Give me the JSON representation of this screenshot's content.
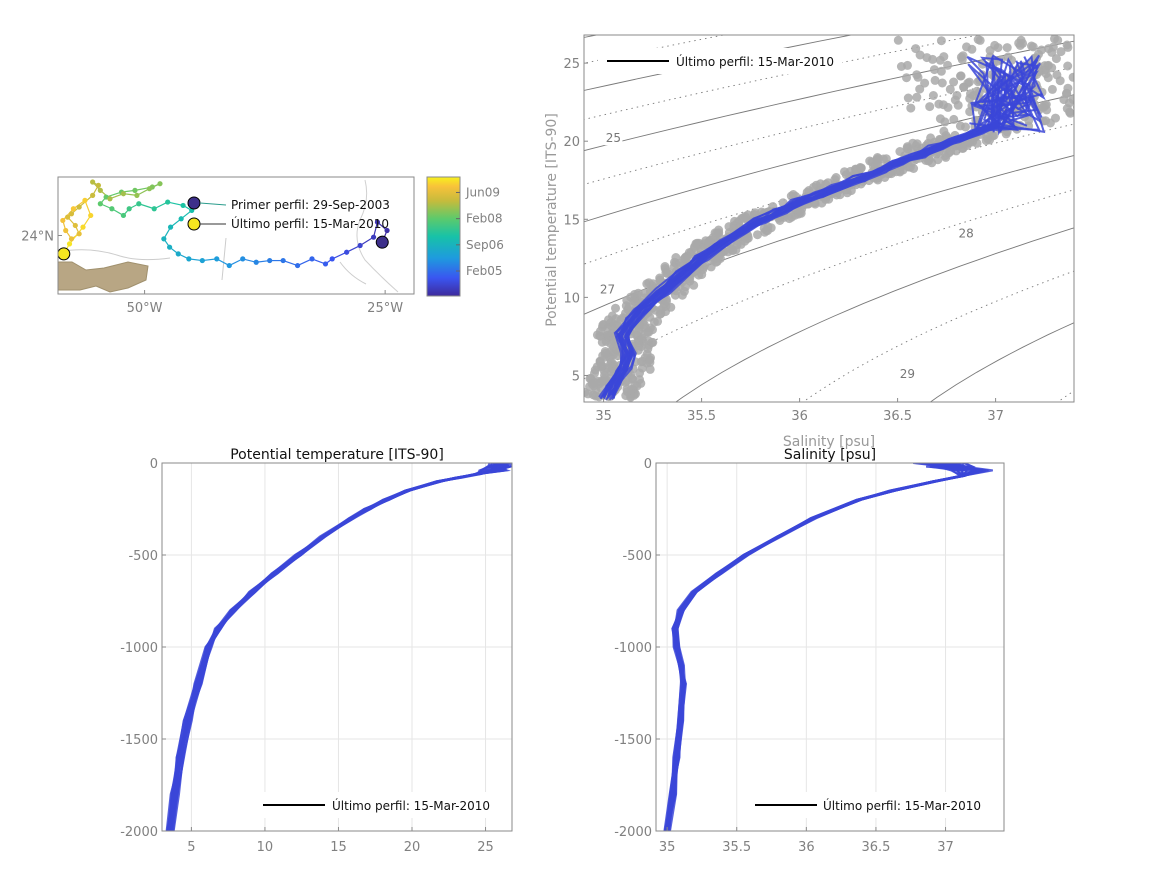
{
  "colors": {
    "profile": "#3b46d8",
    "history": "#a9a9a9",
    "grid": "#e6e6e6",
    "axis": "#8a8a8a",
    "contour": "#7a7a7a",
    "land": "#b8a684",
    "first_marker": "#3d2f8a",
    "last_marker": "#f6e620"
  },
  "chart_data": [
    {
      "id": "map",
      "type": "scatter",
      "title": "",
      "xlabel": "",
      "ylabel": "",
      "xlim": [
        -59,
        -22
      ],
      "ylim": [
        20.5,
        27.5
      ],
      "xticks": [
        -50,
        -25
      ],
      "xtick_labels": [
        "50°W",
        "25°W"
      ],
      "yticks": [
        24
      ],
      "ytick_labels": [
        "24°N"
      ],
      "track": {
        "lon": [
          -25.3,
          -24.8,
          -25.8,
          -26.2,
          -27.6,
          -29.0,
          -30.5,
          -31.2,
          -32.6,
          -34.1,
          -35.6,
          -37.0,
          -38.4,
          -39.8,
          -41.2,
          -42.5,
          -44.0,
          -45.4,
          -46.5,
          -47.4,
          -48.0,
          -47.3,
          -46.2,
          -45.1,
          -46.0,
          -47.6,
          -49.0,
          -50.6,
          -51.6,
          -52.2,
          -53.4,
          -54.6,
          -54.0,
          -52.4,
          -51.0,
          -49.2,
          -48.4,
          -49.5,
          -50.8,
          -52.2,
          -53.6,
          -54.6,
          -55.4,
          -54.8,
          -55.4,
          -56.8,
          -57.6,
          -58.0,
          -57.2,
          -56.8,
          -57.6,
          -58.2,
          -58.5,
          -57.4,
          -56.2,
          -55.6,
          -56.4,
          -57.8,
          -58.4
        ],
        "lat": [
          23.6,
          24.3,
          24.8,
          23.9,
          23.4,
          23.0,
          22.6,
          22.3,
          22.6,
          22.2,
          22.5,
          22.5,
          22.4,
          22.6,
          22.2,
          22.6,
          22.5,
          22.6,
          22.9,
          23.3,
          23.8,
          24.5,
          25.0,
          25.5,
          25.8,
          26.0,
          25.6,
          25.9,
          25.6,
          25.2,
          25.6,
          25.9,
          26.3,
          26.6,
          26.7,
          26.9,
          27.1,
          26.8,
          26.4,
          26.5,
          26.2,
          26.7,
          27.2,
          27.0,
          26.4,
          25.7,
          25.3,
          25.1,
          24.6,
          24.1,
          23.8,
          24.3,
          24.9,
          25.6,
          26.1,
          25.2,
          24.5,
          23.5,
          22.9
        ],
        "t": [
          0.0,
          0.02,
          0.04,
          0.06,
          0.09,
          0.12,
          0.15,
          0.17,
          0.19,
          0.21,
          0.23,
          0.25,
          0.27,
          0.29,
          0.31,
          0.33,
          0.35,
          0.37,
          0.39,
          0.41,
          0.43,
          0.45,
          0.47,
          0.49,
          0.51,
          0.53,
          0.55,
          0.57,
          0.59,
          0.61,
          0.63,
          0.65,
          0.66,
          0.67,
          0.68,
          0.7,
          0.71,
          0.72,
          0.73,
          0.75,
          0.76,
          0.77,
          0.78,
          0.8,
          0.81,
          0.82,
          0.84,
          0.85,
          0.86,
          0.88,
          0.89,
          0.9,
          0.91,
          0.93,
          0.94,
          0.95,
          0.96,
          0.98,
          1.0
        ]
      },
      "first_profile": {
        "lon": -25.3,
        "lat": 23.6,
        "label": "Primer perfil: 29-Sep-2003"
      },
      "last_profile": {
        "lon": -58.4,
        "lat": 22.9,
        "label": "Último perfil: 15-Mar-2010"
      },
      "colorbar": {
        "ticks": [
          "Jun09",
          "Feb08",
          "Sep06",
          "Feb05"
        ],
        "tick_positions": [
          0.87,
          0.65,
          0.43,
          0.21
        ]
      }
    },
    {
      "id": "ts",
      "type": "scatter",
      "xlabel": "Salinity [psu]",
      "ylabel": "Potential temperature [ITS-90]",
      "xlim": [
        34.9,
        37.4
      ],
      "ylim": [
        3.3,
        26.8
      ],
      "xticks": [
        35,
        35.5,
        36,
        36.5,
        37
      ],
      "xtick_labels": [
        "35",
        "35.5",
        "36",
        "36.5",
        "37"
      ],
      "yticks": [
        5,
        10,
        15,
        20,
        25
      ],
      "ytick_labels": [
        "5",
        "10",
        "15",
        "20",
        "25"
      ],
      "sigma_solid": [
        24,
        25,
        26,
        27,
        28,
        29
      ],
      "sigma_dotted": [
        24.5,
        25.5,
        26.5,
        27.5,
        28.5
      ],
      "sigma_labels": [
        {
          "value": "25",
          "s": 35.05,
          "t": 20.0
        },
        {
          "value": "27",
          "s": 35.02,
          "t": 10.3
        },
        {
          "value": "28",
          "s": 36.85,
          "t": 13.9
        },
        {
          "value": "29",
          "s": 36.55,
          "t": 4.9
        }
      ],
      "legend": {
        "label": "Último perfil: 15-Mar-2010",
        "location": "top-left"
      },
      "profile_curve": {
        "s": [
          35.02,
          35.05,
          35.1,
          35.13,
          35.1,
          35.15,
          35.2,
          35.3,
          35.4,
          35.5,
          35.6,
          35.7,
          35.8,
          35.9,
          36.0,
          36.1,
          36.2,
          36.3,
          36.4,
          36.5,
          36.6,
          36.7,
          36.8,
          36.9,
          37.0
        ],
        "t": [
          3.6,
          4.4,
          5.4,
          6.4,
          7.6,
          8.5,
          9.3,
          10.4,
          11.5,
          12.6,
          13.5,
          14.2,
          14.9,
          15.5,
          16.1,
          16.6,
          17.1,
          17.6,
          18.1,
          18.6,
          19.1,
          19.6,
          20.1,
          20.6,
          21.0
        ]
      }
    },
    {
      "id": "temp_profile",
      "type": "line",
      "title": "Potential temperature [ITS-90]",
      "xlabel": "",
      "ylabel": "",
      "xlim": [
        3.0,
        26.8
      ],
      "ylim": [
        -2000,
        0
      ],
      "xticks": [
        5,
        10,
        15,
        20,
        25
      ],
      "xtick_labels": [
        "5",
        "10",
        "15",
        "20",
        "25"
      ],
      "yticks": [
        0,
        -500,
        -1000,
        -1500,
        -2000
      ],
      "ytick_labels": [
        "0",
        "-500",
        "-1000",
        "-1500",
        "-2000"
      ],
      "legend": {
        "label": "Último perfil: 15-Mar-2010",
        "location": "bottom-right"
      },
      "profile": {
        "depth": [
          -2000,
          -1800,
          -1600,
          -1400,
          -1200,
          -1000,
          -900,
          -800,
          -700,
          -600,
          -500,
          -400,
          -300,
          -250,
          -200,
          -150,
          -100,
          -80,
          -60,
          -40,
          -20,
          0
        ],
        "value": [
          3.6,
          3.9,
          4.3,
          4.8,
          5.5,
          6.2,
          6.9,
          7.9,
          9.2,
          10.7,
          12.3,
          14.0,
          15.9,
          17.0,
          18.3,
          19.8,
          21.9,
          23.2,
          24.5,
          25.6,
          26.0,
          26.1
        ]
      }
    },
    {
      "id": "sal_profile",
      "type": "line",
      "title": "Salinity [psu]",
      "xlabel": "",
      "ylabel": "",
      "xlim": [
        34.92,
        37.42
      ],
      "ylim": [
        -2000,
        0
      ],
      "xticks": [
        35,
        35.5,
        36,
        36.5,
        37
      ],
      "xtick_labels": [
        "35",
        "35.5",
        "36",
        "36.5",
        "37"
      ],
      "yticks": [
        0,
        -500,
        -1000,
        -1500,
        -2000
      ],
      "ytick_labels": [
        "0",
        "-500",
        "-1000",
        "-1500",
        "-2000"
      ],
      "legend": {
        "label": "Último perfil: 15-Mar-2010",
        "location": "bottom-right"
      },
      "profile": {
        "depth": [
          -2000,
          -1800,
          -1600,
          -1400,
          -1200,
          -1100,
          -1000,
          -900,
          -800,
          -700,
          -600,
          -500,
          -400,
          -300,
          -200,
          -150,
          -100,
          -70,
          -40,
          -20,
          0
        ],
        "value": [
          35.0,
          35.04,
          35.07,
          35.1,
          35.12,
          35.1,
          35.07,
          35.06,
          35.1,
          35.2,
          35.37,
          35.56,
          35.8,
          36.05,
          36.38,
          36.62,
          36.92,
          37.12,
          37.18,
          37.02,
          36.95
        ]
      }
    }
  ]
}
